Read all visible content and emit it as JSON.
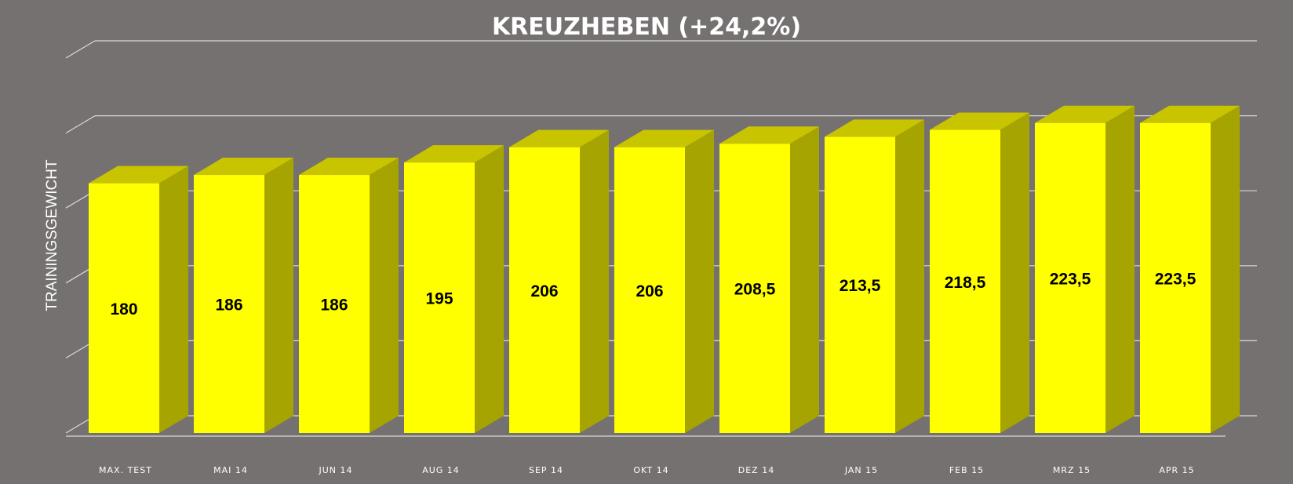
{
  "chart_data": {
    "type": "bar",
    "title": "KREUZHEBEN  (+24,2%)",
    "xlabel": "",
    "ylabel": "TRAININGSGEWICHT",
    "categories": [
      "MAX. TEST",
      "MAI 14",
      "JUN 14",
      "AUG 14",
      "SEP 14",
      "OKT 14",
      "DEZ 14",
      "JAN 15",
      "FEB 15",
      "MRZ 15",
      "APR 15"
    ],
    "values": [
      180,
      186,
      186,
      195,
      206,
      206,
      208.5,
      213.5,
      218.5,
      223.5,
      223.5
    ],
    "value_labels": [
      "180",
      "186",
      "186",
      "195",
      "206",
      "206",
      "208,5",
      "213,5",
      "218,5",
      "223,5",
      "223,5"
    ],
    "ylim": [
      0,
      250
    ],
    "grid": true,
    "legend": false,
    "style": "3d-column",
    "colors": {
      "background": "#767171",
      "bar_front": "#ffff00",
      "bar_top": "#c8c400",
      "bar_side": "#a6a400",
      "gridline": "#d9d9d9",
      "text": "#ffffff",
      "data_label": "#000000"
    }
  }
}
